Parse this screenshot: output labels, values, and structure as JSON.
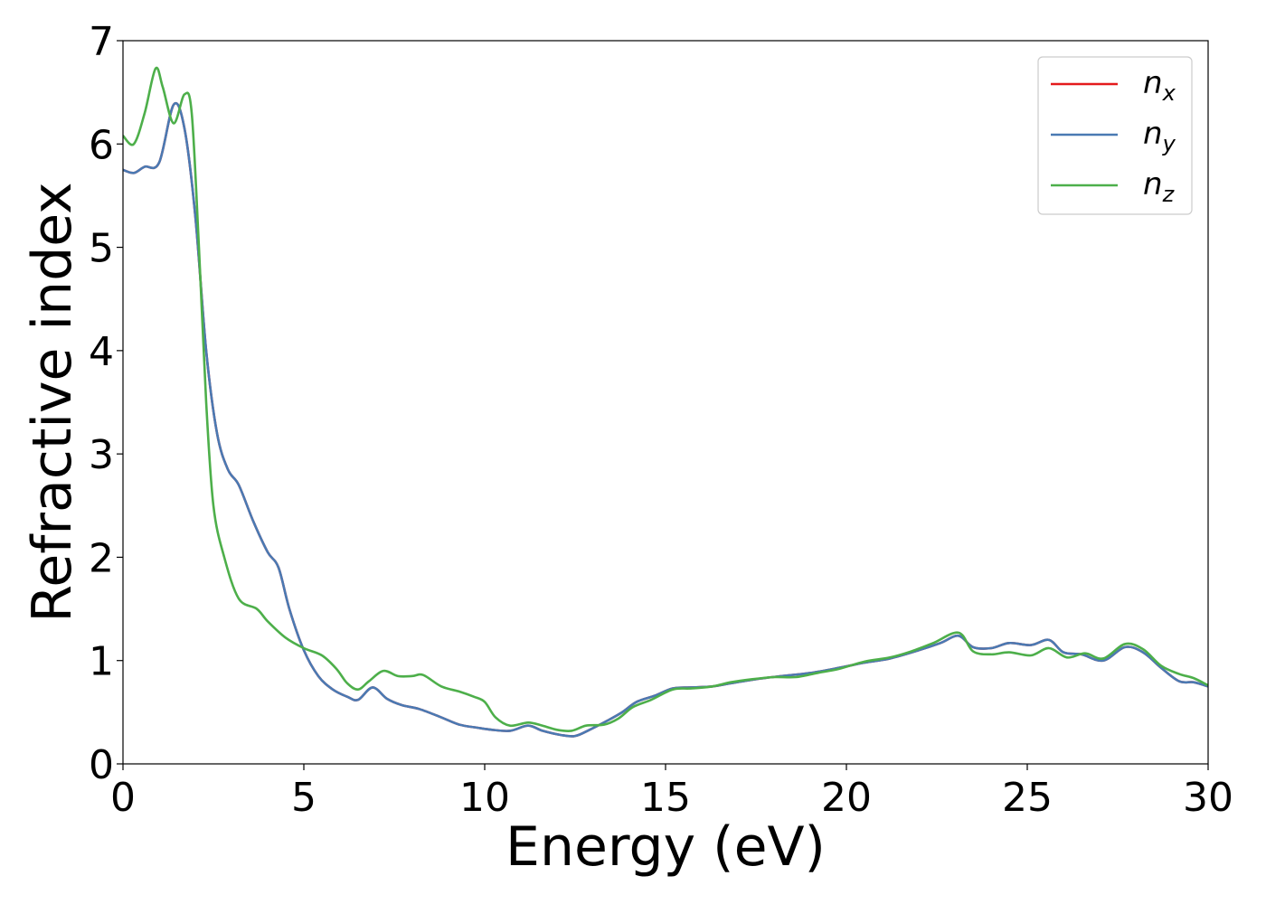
{
  "chart_data": {
    "type": "line",
    "xlabel": "Energy (eV)",
    "ylabel": "Refractive index",
    "xlim": [
      0,
      30
    ],
    "ylim": [
      0,
      7
    ],
    "x_ticks": [
      0,
      5,
      10,
      15,
      20,
      25,
      30
    ],
    "y_ticks": [
      0,
      1,
      2,
      3,
      4,
      5,
      6,
      7
    ],
    "grid": false,
    "legend_position": "top-right",
    "series": [
      {
        "name": "n_x",
        "legend_base": "n",
        "legend_sub": "x",
        "color": "#e41a1c",
        "points": [
          [
            0,
            5.75
          ],
          [
            0.3,
            5.72
          ],
          [
            0.6,
            5.78
          ],
          [
            1.0,
            5.82
          ],
          [
            1.4,
            6.38
          ],
          [
            1.7,
            6.15
          ],
          [
            2.0,
            5.3
          ],
          [
            2.3,
            4.0
          ],
          [
            2.6,
            3.2
          ],
          [
            2.9,
            2.85
          ],
          [
            3.2,
            2.7
          ],
          [
            3.6,
            2.35
          ],
          [
            4.0,
            2.05
          ],
          [
            4.3,
            1.9
          ],
          [
            4.6,
            1.5
          ],
          [
            5.0,
            1.1
          ],
          [
            5.4,
            0.85
          ],
          [
            5.8,
            0.72
          ],
          [
            6.2,
            0.65
          ],
          [
            6.5,
            0.62
          ],
          [
            6.9,
            0.74
          ],
          [
            7.3,
            0.63
          ],
          [
            7.7,
            0.57
          ],
          [
            8.2,
            0.53
          ],
          [
            8.8,
            0.45
          ],
          [
            9.3,
            0.38
          ],
          [
            9.8,
            0.35
          ],
          [
            10.2,
            0.33
          ],
          [
            10.7,
            0.32
          ],
          [
            11.2,
            0.37
          ],
          [
            11.6,
            0.32
          ],
          [
            12.1,
            0.28
          ],
          [
            12.5,
            0.27
          ],
          [
            12.9,
            0.33
          ],
          [
            13.4,
            0.42
          ],
          [
            13.8,
            0.5
          ],
          [
            14.2,
            0.6
          ],
          [
            14.7,
            0.66
          ],
          [
            15.2,
            0.73
          ],
          [
            15.7,
            0.74
          ],
          [
            16.3,
            0.75
          ],
          [
            16.8,
            0.78
          ],
          [
            17.5,
            0.82
          ],
          [
            18.2,
            0.85
          ],
          [
            19.0,
            0.88
          ],
          [
            19.8,
            0.93
          ],
          [
            20.5,
            0.98
          ],
          [
            21.2,
            1.02
          ],
          [
            22.0,
            1.1
          ],
          [
            22.6,
            1.17
          ],
          [
            23.1,
            1.24
          ],
          [
            23.5,
            1.13
          ],
          [
            24.0,
            1.12
          ],
          [
            24.5,
            1.17
          ],
          [
            25.1,
            1.15
          ],
          [
            25.6,
            1.2
          ],
          [
            26.0,
            1.08
          ],
          [
            26.5,
            1.06
          ],
          [
            27.1,
            1.0
          ],
          [
            27.7,
            1.13
          ],
          [
            28.2,
            1.08
          ],
          [
            28.7,
            0.93
          ],
          [
            29.2,
            0.8
          ],
          [
            29.6,
            0.79
          ],
          [
            30.0,
            0.75
          ]
        ]
      },
      {
        "name": "n_y",
        "legend_base": "n",
        "legend_sub": "y",
        "color": "#4a7ab3",
        "points": [
          [
            0,
            5.75
          ],
          [
            0.3,
            5.72
          ],
          [
            0.6,
            5.78
          ],
          [
            1.0,
            5.82
          ],
          [
            1.4,
            6.38
          ],
          [
            1.7,
            6.15
          ],
          [
            2.0,
            5.3
          ],
          [
            2.3,
            4.0
          ],
          [
            2.6,
            3.2
          ],
          [
            2.9,
            2.85
          ],
          [
            3.2,
            2.7
          ],
          [
            3.6,
            2.35
          ],
          [
            4.0,
            2.05
          ],
          [
            4.3,
            1.9
          ],
          [
            4.6,
            1.5
          ],
          [
            5.0,
            1.1
          ],
          [
            5.4,
            0.85
          ],
          [
            5.8,
            0.72
          ],
          [
            6.2,
            0.65
          ],
          [
            6.5,
            0.62
          ],
          [
            6.9,
            0.74
          ],
          [
            7.3,
            0.63
          ],
          [
            7.7,
            0.57
          ],
          [
            8.2,
            0.53
          ],
          [
            8.8,
            0.45
          ],
          [
            9.3,
            0.38
          ],
          [
            9.8,
            0.35
          ],
          [
            10.2,
            0.33
          ],
          [
            10.7,
            0.32
          ],
          [
            11.2,
            0.37
          ],
          [
            11.6,
            0.32
          ],
          [
            12.1,
            0.28
          ],
          [
            12.5,
            0.27
          ],
          [
            12.9,
            0.33
          ],
          [
            13.4,
            0.42
          ],
          [
            13.8,
            0.5
          ],
          [
            14.2,
            0.6
          ],
          [
            14.7,
            0.66
          ],
          [
            15.2,
            0.73
          ],
          [
            15.7,
            0.74
          ],
          [
            16.3,
            0.75
          ],
          [
            16.8,
            0.78
          ],
          [
            17.5,
            0.82
          ],
          [
            18.2,
            0.85
          ],
          [
            19.0,
            0.88
          ],
          [
            19.8,
            0.93
          ],
          [
            20.5,
            0.98
          ],
          [
            21.2,
            1.02
          ],
          [
            22.0,
            1.1
          ],
          [
            22.6,
            1.17
          ],
          [
            23.1,
            1.24
          ],
          [
            23.5,
            1.13
          ],
          [
            24.0,
            1.12
          ],
          [
            24.5,
            1.17
          ],
          [
            25.1,
            1.15
          ],
          [
            25.6,
            1.2
          ],
          [
            26.0,
            1.08
          ],
          [
            26.5,
            1.06
          ],
          [
            27.1,
            1.0
          ],
          [
            27.7,
            1.13
          ],
          [
            28.2,
            1.08
          ],
          [
            28.7,
            0.93
          ],
          [
            29.2,
            0.8
          ],
          [
            29.6,
            0.79
          ],
          [
            30.0,
            0.75
          ]
        ]
      },
      {
        "name": "n_z",
        "legend_base": "n",
        "legend_sub": "z",
        "color": "#4daf4a",
        "points": [
          [
            0,
            6.08
          ],
          [
            0.3,
            6.0
          ],
          [
            0.6,
            6.3
          ],
          [
            0.9,
            6.73
          ],
          [
            1.1,
            6.55
          ],
          [
            1.4,
            6.2
          ],
          [
            1.7,
            6.48
          ],
          [
            1.9,
            6.3
          ],
          [
            2.1,
            5.0
          ],
          [
            2.3,
            3.5
          ],
          [
            2.5,
            2.5
          ],
          [
            2.8,
            2.0
          ],
          [
            3.2,
            1.6
          ],
          [
            3.7,
            1.5
          ],
          [
            4.0,
            1.38
          ],
          [
            4.5,
            1.22
          ],
          [
            5.0,
            1.12
          ],
          [
            5.5,
            1.05
          ],
          [
            5.9,
            0.92
          ],
          [
            6.2,
            0.78
          ],
          [
            6.5,
            0.72
          ],
          [
            6.8,
            0.8
          ],
          [
            7.2,
            0.9
          ],
          [
            7.6,
            0.85
          ],
          [
            8.0,
            0.85
          ],
          [
            8.3,
            0.86
          ],
          [
            8.8,
            0.75
          ],
          [
            9.3,
            0.7
          ],
          [
            9.7,
            0.65
          ],
          [
            10.0,
            0.6
          ],
          [
            10.3,
            0.45
          ],
          [
            10.7,
            0.37
          ],
          [
            11.2,
            0.4
          ],
          [
            11.6,
            0.37
          ],
          [
            12.0,
            0.33
          ],
          [
            12.4,
            0.32
          ],
          [
            12.8,
            0.37
          ],
          [
            13.3,
            0.38
          ],
          [
            13.7,
            0.44
          ],
          [
            14.1,
            0.55
          ],
          [
            14.6,
            0.62
          ],
          [
            15.2,
            0.72
          ],
          [
            15.7,
            0.73
          ],
          [
            16.3,
            0.75
          ],
          [
            16.8,
            0.79
          ],
          [
            17.4,
            0.82
          ],
          [
            18.0,
            0.84
          ],
          [
            18.6,
            0.84
          ],
          [
            19.2,
            0.88
          ],
          [
            19.8,
            0.92
          ],
          [
            20.5,
            0.99
          ],
          [
            21.2,
            1.03
          ],
          [
            21.8,
            1.09
          ],
          [
            22.4,
            1.17
          ],
          [
            23.1,
            1.27
          ],
          [
            23.5,
            1.09
          ],
          [
            24.0,
            1.06
          ],
          [
            24.5,
            1.08
          ],
          [
            25.1,
            1.05
          ],
          [
            25.6,
            1.12
          ],
          [
            26.1,
            1.03
          ],
          [
            26.6,
            1.07
          ],
          [
            27.1,
            1.02
          ],
          [
            27.7,
            1.16
          ],
          [
            28.2,
            1.11
          ],
          [
            28.7,
            0.95
          ],
          [
            29.2,
            0.87
          ],
          [
            29.6,
            0.83
          ],
          [
            30.0,
            0.76
          ]
        ]
      }
    ]
  }
}
